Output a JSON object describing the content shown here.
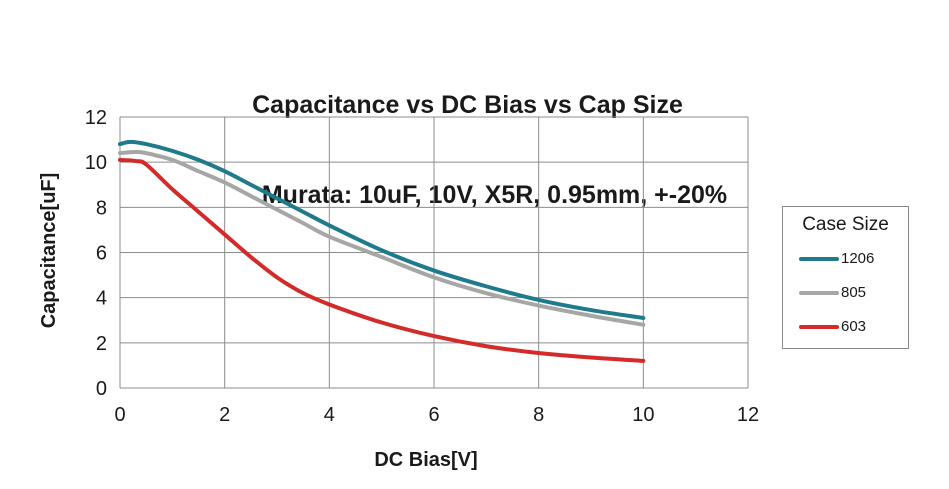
{
  "title": {
    "line1": "Capacitance vs DC Bias vs Cap Size",
    "line2": "Murata: 10uF, 10V, X5R, 0.95mm, +-20%"
  },
  "chart_data": {
    "type": "line",
    "title": "Capacitance vs DC Bias vs Cap Size",
    "subtitle": "Murata: 10uF, 10V, X5R, 0.95mm, +-20%",
    "xlabel": "DC Bias[V]",
    "ylabel": "Capacitance[uF]",
    "xlim": [
      0,
      12
    ],
    "ylim": [
      0,
      12
    ],
    "xticks": [
      0,
      2,
      4,
      6,
      8,
      10,
      12
    ],
    "yticks": [
      0,
      2,
      4,
      6,
      8,
      10,
      12
    ],
    "grid": true,
    "legend_title": "Case Size",
    "legend_position": "right",
    "series": [
      {
        "name": "1206",
        "color": "#1f7a8c",
        "x": [
          0,
          0.2,
          0.5,
          1,
          1.5,
          2,
          2.5,
          3,
          3.5,
          4,
          5,
          6,
          7,
          8,
          9,
          10
        ],
        "y": [
          10.8,
          10.9,
          10.8,
          10.5,
          10.1,
          9.6,
          9.0,
          8.4,
          7.8,
          7.2,
          6.1,
          5.2,
          4.5,
          3.9,
          3.45,
          3.1
        ]
      },
      {
        "name": "805",
        "color": "#a6a6a6",
        "x": [
          0,
          0.3,
          0.5,
          1,
          1.5,
          2,
          2.5,
          3,
          3.5,
          4,
          5,
          6,
          7,
          8,
          9,
          10
        ],
        "y": [
          10.4,
          10.45,
          10.4,
          10.1,
          9.6,
          9.1,
          8.5,
          7.9,
          7.3,
          6.7,
          5.8,
          4.9,
          4.2,
          3.65,
          3.2,
          2.8
        ]
      },
      {
        "name": "603",
        "color": "#d42a2a",
        "x": [
          0,
          0.3,
          0.5,
          1,
          1.5,
          2,
          2.5,
          3,
          3.5,
          4,
          5,
          6,
          7,
          8,
          9,
          10
        ],
        "y": [
          10.1,
          10.05,
          9.9,
          8.8,
          7.8,
          6.8,
          5.8,
          4.9,
          4.2,
          3.7,
          2.9,
          2.3,
          1.85,
          1.55,
          1.35,
          1.2
        ]
      }
    ]
  }
}
